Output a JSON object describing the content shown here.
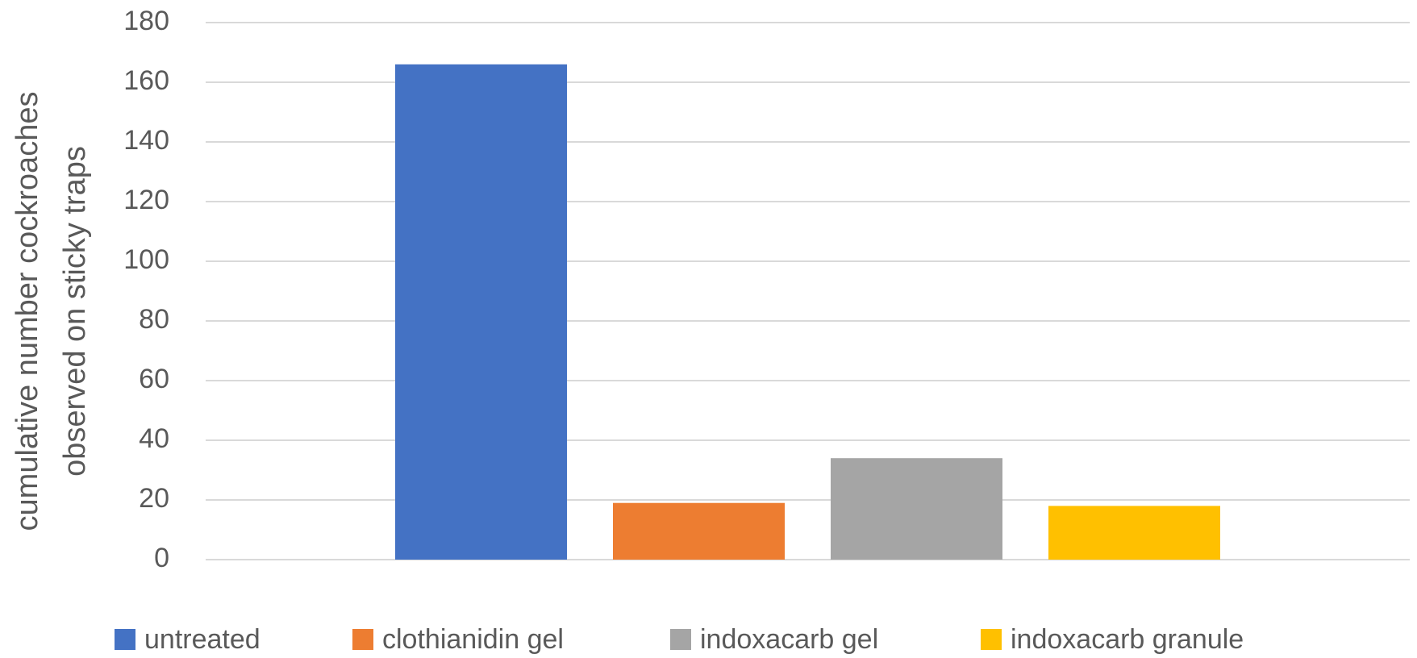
{
  "chart_data": {
    "type": "bar",
    "y_label": [
      "cumulative number cockroaches",
      "observed on sticky traps"
    ],
    "categories": [
      null
    ],
    "series": [
      {
        "name": "untreated",
        "color": "#4472c4",
        "values": [
          166
        ]
      },
      {
        "name": "clothianidin gel",
        "color": "#ed7d31",
        "values": [
          19
        ]
      },
      {
        "name": "indoxacarb gel",
        "color": "#a5a5a5",
        "values": [
          34
        ]
      },
      {
        "name": "indoxacarb granule",
        "color": "#ffc000",
        "values": [
          18
        ]
      }
    ],
    "ylim": [
      0,
      180
    ],
    "yticks": [
      0,
      20,
      40,
      60,
      80,
      100,
      120,
      140,
      160,
      180
    ],
    "grid": true,
    "legend": "bottom"
  }
}
